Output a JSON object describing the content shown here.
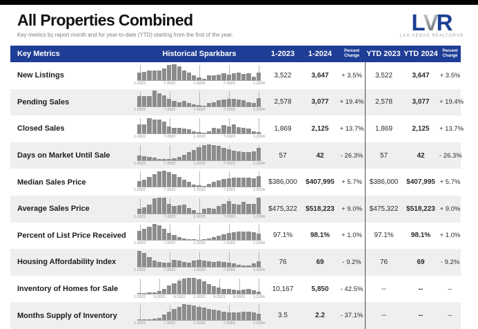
{
  "page": {
    "title": "All Properties Combined",
    "subtitle": "Key metrics by report month and for year-to-date (YTD) starting from the first of the year."
  },
  "logo": {
    "letter_l": "L",
    "letter_v": "V",
    "letter_r": "R",
    "caption": "LAS VEGAS REALTORS®",
    "blue": "#1b3e94",
    "silver": "#8f9499"
  },
  "table": {
    "header_bg": "#1e3d96",
    "alt_row_bg": "#efefef",
    "bar_color": "#8c8c8c",
    "headers": {
      "key_metrics": "Key Metrics",
      "sparkbars": "Historical Sparkbars",
      "month_2023": "1-2023",
      "month_2024": "1-2024",
      "pct_change": "Percent Change",
      "ytd_2023": "YTD 2023",
      "ytd_2024": "YTD 2024",
      "ytd_pct_change": "Percent Change"
    },
    "rows": [
      {
        "metric": "New Listings",
        "m2023": "3,522",
        "m2024": "3,647",
        "pct": "+ 3.5%",
        "ytd2023": "3,522",
        "ytd2024": "3,647",
        "ytd_pct": "+ 3.5%"
      },
      {
        "metric": "Pending Sales",
        "m2023": "2,578",
        "m2024": "3,077",
        "pct": "+ 19.4%",
        "ytd2023": "2,578",
        "ytd2024": "3,077",
        "ytd_pct": "+ 19.4%"
      },
      {
        "metric": "Closed Sales",
        "m2023": "1,869",
        "m2024": "2,125",
        "pct": "+ 13.7%",
        "ytd2023": "1,869",
        "ytd2024": "2,125",
        "ytd_pct": "+ 13.7%"
      },
      {
        "metric": "Days on Market Until Sale",
        "m2023": "57",
        "m2024": "42",
        "pct": "- 26.3%",
        "ytd2023": "57",
        "ytd2024": "42",
        "ytd_pct": "- 26.3%"
      },
      {
        "metric": "Median Sales Price",
        "m2023": "$386,000",
        "m2024": "$407,995",
        "pct": "+ 5.7%",
        "ytd2023": "$386,000",
        "ytd2024": "$407,995",
        "ytd_pct": "+ 5.7%"
      },
      {
        "metric": "Average Sales Price",
        "m2023": "$475,322",
        "m2024": "$518,223",
        "pct": "+ 9.0%",
        "ytd2023": "$475,322",
        "ytd2024": "$518,223",
        "ytd_pct": "+ 9.0%"
      },
      {
        "metric": "Percent of List Price Received",
        "m2023": "97.1%",
        "m2024": "98.1%",
        "pct": "+ 1.0%",
        "ytd2023": "97.1%",
        "ytd2024": "98.1%",
        "ytd_pct": "+ 1.0%"
      },
      {
        "metric": "Housing Affordability Index",
        "m2023": "76",
        "m2024": "69",
        "pct": "- 9.2%",
        "ytd2023": "76",
        "ytd2024": "69",
        "ytd_pct": "- 9.2%"
      },
      {
        "metric": "Inventory of Homes for Sale",
        "m2023": "10,167",
        "m2024": "5,850",
        "pct": "- 42.5%",
        "ytd2023": "--",
        "ytd2024": "--",
        "ytd_pct": "--"
      },
      {
        "metric": "Months Supply of Inventory",
        "m2023": "3.5",
        "m2024": "2.2",
        "pct": "- 37.1%",
        "ytd2023": "--",
        "ytd2024": "--",
        "ytd_pct": "--"
      }
    ]
  },
  "chart_data": [
    {
      "type": "bar",
      "title": "New Listings sparkbar",
      "unit": "relative height %",
      "x_labels": [
        "1-2022",
        "7-2022",
        "1-2023",
        "7-2023",
        "1-2024"
      ],
      "tick_indices": [
        0,
        6,
        12,
        18,
        24
      ],
      "values": [
        48,
        52,
        58,
        62,
        60,
        72,
        95,
        100,
        85,
        62,
        45,
        28,
        15,
        8,
        30,
        28,
        35,
        42,
        35,
        42,
        45,
        38,
        42,
        20,
        45
      ]
    },
    {
      "type": "bar",
      "title": "Pending Sales sparkbar",
      "unit": "relative height %",
      "x_labels": [
        "1-2022",
        "7-2022",
        "1-2023",
        "7-2023",
        "1-2024"
      ],
      "tick_indices": [
        0,
        6,
        12,
        18,
        24
      ],
      "values": [
        65,
        65,
        68,
        100,
        85,
        70,
        50,
        35,
        30,
        35,
        22,
        15,
        10,
        8,
        25,
        30,
        40,
        45,
        50,
        50,
        45,
        40,
        30,
        25,
        55
      ]
    },
    {
      "type": "bar",
      "title": "Closed Sales sparkbar",
      "unit": "relative height %",
      "x_labels": [
        "1-2022",
        "7-2022",
        "1-2023",
        "7-2023",
        "1-2024"
      ],
      "tick_indices": [
        0,
        6,
        12,
        18,
        24
      ],
      "values": [
        55,
        55,
        95,
        85,
        85,
        75,
        45,
        35,
        35,
        30,
        25,
        15,
        10,
        5,
        15,
        35,
        30,
        50,
        45,
        55,
        40,
        35,
        30,
        15,
        8
      ]
    },
    {
      "type": "bar",
      "title": "Days on Market Until Sale sparkbar",
      "unit": "relative height %",
      "x_labels": [
        "1-2022",
        "7-2022",
        "1-2023",
        "7-2023",
        "1-2024"
      ],
      "tick_indices": [
        0,
        6,
        12,
        18,
        24
      ],
      "values": [
        30,
        25,
        20,
        15,
        8,
        5,
        5,
        12,
        22,
        35,
        50,
        65,
        80,
        95,
        100,
        95,
        88,
        78,
        68,
        60,
        55,
        50,
        50,
        55,
        75
      ]
    },
    {
      "type": "bar",
      "title": "Median Sales Price sparkbar",
      "unit": "relative height %",
      "x_labels": [
        "1-2022",
        "7-2022",
        "1-2023",
        "7-2023",
        "1-2024"
      ],
      "tick_indices": [
        0,
        6,
        12,
        18,
        24
      ],
      "values": [
        35,
        45,
        60,
        78,
        95,
        100,
        90,
        80,
        60,
        45,
        30,
        15,
        8,
        5,
        20,
        30,
        40,
        50,
        55,
        58,
        58,
        58,
        58,
        55,
        65
      ]
    },
    {
      "type": "bar",
      "title": "Average Sales Price sparkbar",
      "unit": "relative height %",
      "x_labels": [
        "1-2022",
        "7-2022",
        "1-2023",
        "7-2023",
        "1-2024"
      ],
      "tick_indices": [
        0,
        6,
        12,
        18,
        24
      ],
      "values": [
        28,
        38,
        55,
        95,
        100,
        98,
        58,
        48,
        52,
        55,
        35,
        22,
        5,
        28,
        35,
        30,
        48,
        62,
        78,
        60,
        55,
        72,
        62,
        58,
        100
      ]
    },
    {
      "type": "bar",
      "title": "Percent of List Price Received sparkbar",
      "unit": "relative height %",
      "x_labels": [
        "1-2022",
        "7-2022",
        "1-2023",
        "7-2023",
        "1-2024"
      ],
      "tick_indices": [
        0,
        6,
        12,
        18,
        24
      ],
      "values": [
        60,
        70,
        85,
        100,
        95,
        70,
        45,
        30,
        20,
        12,
        8,
        5,
        3,
        5,
        10,
        18,
        28,
        38,
        45,
        50,
        55,
        55,
        52,
        48,
        40
      ]
    },
    {
      "type": "bar",
      "title": "Housing Affordability Index sparkbar",
      "unit": "relative height %",
      "x_labels": [
        "1-2022",
        "7-2022",
        "1-2023",
        "7-2023",
        "1-2024"
      ],
      "tick_indices": [
        0,
        6,
        12,
        18,
        24
      ],
      "values": [
        100,
        85,
        60,
        40,
        32,
        25,
        28,
        42,
        38,
        30,
        26,
        38,
        45,
        40,
        34,
        30,
        34,
        30,
        25,
        20,
        15,
        10,
        8,
        22,
        35
      ]
    },
    {
      "type": "bar",
      "title": "Inventory of Homes for Sale sparkbar",
      "unit": "relative height %",
      "x_labels": [
        "1-2022",
        "5-2022",
        "9-2022",
        "1-2023",
        "5-2023",
        "9-2023",
        "1-2024"
      ],
      "tick_indices": [
        0,
        4,
        8,
        12,
        16,
        20,
        24
      ],
      "values": [
        3,
        3,
        5,
        8,
        15,
        30,
        50,
        65,
        80,
        95,
        100,
        98,
        88,
        75,
        60,
        48,
        38,
        30,
        28,
        25,
        22,
        25,
        28,
        22,
        12
      ]
    },
    {
      "type": "bar",
      "title": "Months Supply of Inventory sparkbar",
      "unit": "relative height %",
      "x_labels": [
        "1-2022",
        "7-2022",
        "1-2023",
        "7-2023",
        "1-2024"
      ],
      "tick_indices": [
        0,
        6,
        12,
        18,
        24
      ],
      "values": [
        3,
        4,
        6,
        8,
        15,
        35,
        55,
        70,
        85,
        100,
        95,
        90,
        85,
        80,
        70,
        65,
        60,
        55,
        50,
        48,
        50,
        52,
        55,
        50,
        40
      ]
    }
  ]
}
